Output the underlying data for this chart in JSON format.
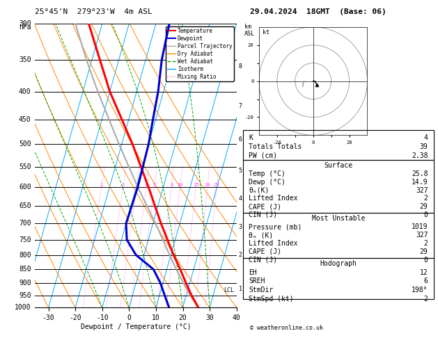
{
  "title_left": "25°45'N  279°23'W  4m ASL",
  "title_right": "29.04.2024  18GMT  (Base: 06)",
  "xlabel": "Dewpoint / Temperature (°C)",
  "p_levels": [
    300,
    350,
    400,
    450,
    500,
    550,
    600,
    650,
    700,
    750,
    800,
    850,
    900,
    950,
    1000
  ],
  "p_min": 300,
  "p_max": 1000,
  "t_min": -35,
  "t_max": 40,
  "skew": 30,
  "temp_profile": {
    "pressure": [
      1000,
      950,
      900,
      850,
      800,
      700,
      600,
      500,
      400,
      350,
      300
    ],
    "temperature": [
      25.8,
      22.0,
      18.5,
      15.0,
      11.0,
      3.0,
      -5.5,
      -16.0,
      -30.0,
      -37.0,
      -45.0
    ]
  },
  "dewp_profile": {
    "pressure": [
      1000,
      950,
      900,
      850,
      800,
      750,
      700,
      600,
      500,
      450,
      400,
      350,
      300
    ],
    "dewpoint": [
      14.9,
      12.0,
      9.0,
      5.0,
      -3.0,
      -8.0,
      -10.0,
      -9.5,
      -10.0,
      -11.0,
      -12.0,
      -14.0,
      -15.0
    ]
  },
  "parcel_profile": {
    "pressure": [
      1000,
      950,
      900,
      850,
      800,
      700,
      600,
      500,
      400,
      350,
      300
    ],
    "temperature": [
      25.8,
      21.5,
      17.5,
      13.5,
      9.5,
      1.0,
      -9.5,
      -21.0,
      -34.5,
      -42.0,
      -50.0
    ]
  },
  "dry_adiabat_t0s": [
    -40,
    -30,
    -20,
    -10,
    0,
    10,
    20,
    30,
    40,
    50,
    60,
    70
  ],
  "wet_adiabat_t0s": [
    -10,
    0,
    10,
    20,
    30
  ],
  "mixing_ratios": [
    1,
    2,
    3,
    4,
    5,
    8,
    10,
    15,
    20,
    25
  ],
  "lcl_pressure": 930,
  "km_labels": {
    "1": 925,
    "2": 800,
    "3": 710,
    "4": 630,
    "5": 560,
    "6": 490,
    "7": 425,
    "8": 360
  },
  "info": {
    "K": 4,
    "TotalsT": 39,
    "PW": "2.38",
    "Surf_Temp": "25.8",
    "Surf_Dewp": "14.9",
    "Surf_theta_e": 327,
    "Surf_LI": 2,
    "Surf_CAPE": 29,
    "Surf_CIN": 0,
    "MU_Press": 1019,
    "MU_theta_e": 327,
    "MU_LI": 2,
    "MU_CAPE": 29,
    "MU_CIN": 0,
    "EH": 12,
    "SREH": 6,
    "StmDir": "198°",
    "StmSpd": 2
  },
  "colors": {
    "temperature": "#ff0000",
    "dewpoint": "#0000cc",
    "parcel": "#aaaaaa",
    "dry_adiabat": "#ff8800",
    "wet_adiabat": "#00aa00",
    "isotherm": "#00aaff",
    "mixing_ratio": "#ff44ff",
    "background": "#ffffff"
  }
}
